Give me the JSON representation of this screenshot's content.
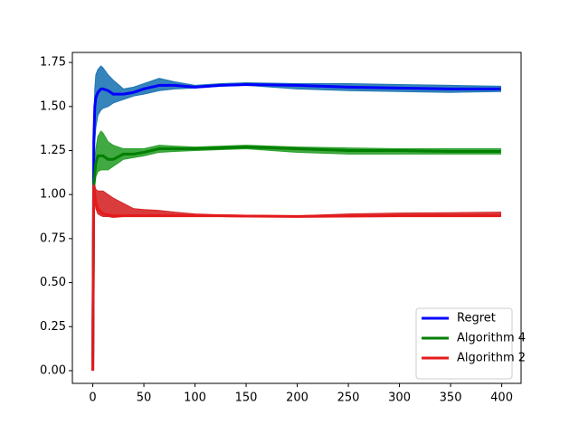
{
  "chart_data": {
    "type": "line",
    "x": [
      0,
      1,
      2,
      3,
      5,
      8,
      10,
      15,
      20,
      30,
      40,
      50,
      65,
      80,
      100,
      125,
      150,
      200,
      250,
      300,
      350,
      399
    ],
    "series": [
      {
        "name": "Regret",
        "color": "#0000ff",
        "band_color": "#1f77b4",
        "values": [
          0,
          1.3,
          1.5,
          1.55,
          1.58,
          1.6,
          1.6,
          1.59,
          1.57,
          1.57,
          1.58,
          1.6,
          1.62,
          1.62,
          1.61,
          1.62,
          1.625,
          1.62,
          1.61,
          1.605,
          1.6,
          1.6
        ],
        "lower": [
          0,
          1.2,
          1.3,
          1.38,
          1.45,
          1.48,
          1.49,
          1.5,
          1.52,
          1.54,
          1.56,
          1.57,
          1.59,
          1.6,
          1.605,
          1.615,
          1.62,
          1.6,
          1.59,
          1.585,
          1.58,
          1.585
        ],
        "upper": [
          0,
          1.4,
          1.6,
          1.68,
          1.71,
          1.73,
          1.72,
          1.68,
          1.65,
          1.6,
          1.61,
          1.63,
          1.66,
          1.64,
          1.62,
          1.63,
          1.635,
          1.63,
          1.63,
          1.625,
          1.62,
          1.615
        ]
      },
      {
        "name": "Algorithm 4",
        "color": "#008000",
        "band_color": "#2ca02c",
        "values": [
          0,
          1.05,
          1.12,
          1.18,
          1.22,
          1.22,
          1.22,
          1.2,
          1.2,
          1.23,
          1.23,
          1.24,
          1.26,
          1.26,
          1.26,
          1.265,
          1.27,
          1.26,
          1.25,
          1.25,
          1.245,
          1.245
        ],
        "lower": [
          0,
          1.0,
          1.05,
          1.1,
          1.13,
          1.14,
          1.14,
          1.14,
          1.16,
          1.2,
          1.21,
          1.22,
          1.24,
          1.245,
          1.25,
          1.255,
          1.26,
          1.24,
          1.23,
          1.23,
          1.23,
          1.23
        ],
        "upper": [
          0,
          1.1,
          1.2,
          1.26,
          1.33,
          1.36,
          1.35,
          1.3,
          1.28,
          1.26,
          1.26,
          1.26,
          1.28,
          1.275,
          1.27,
          1.275,
          1.28,
          1.27,
          1.265,
          1.26,
          1.26,
          1.26
        ]
      },
      {
        "name": "Algorithm 2",
        "color": "#e41a1c",
        "band_color": "#d62728",
        "values": [
          0,
          1.05,
          1.0,
          0.95,
          0.92,
          0.9,
          0.89,
          0.885,
          0.88,
          0.88,
          0.88,
          0.88,
          0.88,
          0.88,
          0.88,
          0.88,
          0.878,
          0.876,
          0.878,
          0.88,
          0.88,
          0.88
        ],
        "lower": [
          0,
          1.03,
          0.97,
          0.92,
          0.89,
          0.88,
          0.875,
          0.875,
          0.87,
          0.875,
          0.875,
          0.875,
          0.875,
          0.875,
          0.875,
          0.875,
          0.873,
          0.872,
          0.875,
          0.875,
          0.875,
          0.875
        ],
        "upper": [
          0,
          1.07,
          1.05,
          1.03,
          1.02,
          1.02,
          1.02,
          1.0,
          0.98,
          0.95,
          0.92,
          0.915,
          0.91,
          0.9,
          0.89,
          0.885,
          0.883,
          0.88,
          0.89,
          0.895,
          0.897,
          0.9
        ]
      }
    ],
    "xlim": [
      -19.95,
      418.95
    ],
    "ylim": [
      -0.072,
      1.807
    ],
    "xticks": [
      0,
      50,
      100,
      150,
      200,
      250,
      300,
      350,
      400
    ],
    "yticks": [
      {
        "value": 0,
        "label": "0.00"
      },
      {
        "value": 0.25,
        "label": "0.25"
      },
      {
        "value": 0.5,
        "label": "0.50"
      },
      {
        "value": 0.75,
        "label": "0.75"
      },
      {
        "value": 1,
        "label": "1.00"
      },
      {
        "value": 1.25,
        "label": "1.25"
      },
      {
        "value": 1.5,
        "label": "1.50"
      },
      {
        "value": 1.75,
        "label": "1.75"
      }
    ],
    "legend": "lower right",
    "grid": false
  }
}
